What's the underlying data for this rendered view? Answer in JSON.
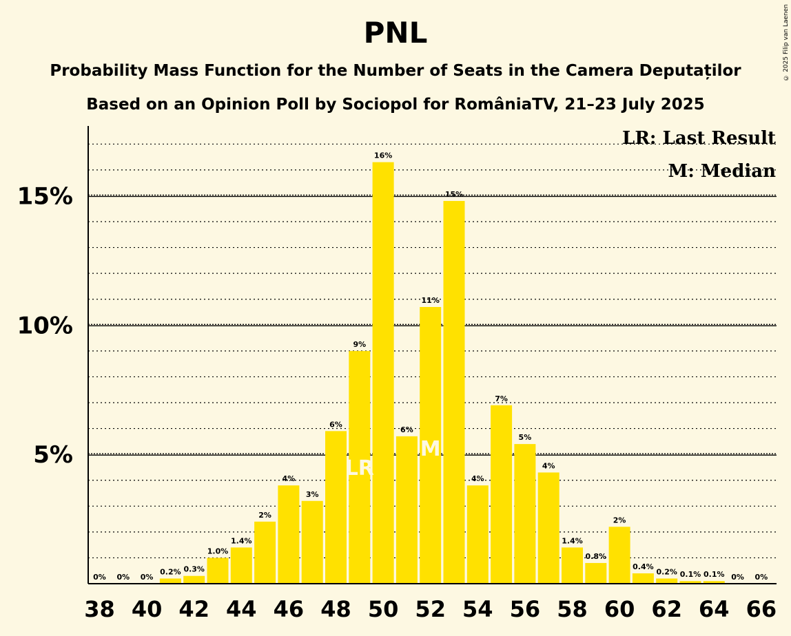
{
  "title": "PNL",
  "subtitle": "Probability Mass Function for the Number of Seats in the Camera Deputaților",
  "subtitle2": "Based on an Opinion Poll by Sociopol for RomâniaTV, 21–23 July 2025",
  "copyright": "© 2025 Filip van Laenen",
  "legend": {
    "last_result": "LR: Last Result",
    "median": "M: Median"
  },
  "colors": {
    "bar": "#FFE100",
    "background": "#FDF8E2",
    "axis": "#000000"
  },
  "chart_data": {
    "type": "bar",
    "x": [
      38,
      39,
      40,
      41,
      42,
      43,
      44,
      45,
      46,
      47,
      48,
      49,
      50,
      51,
      52,
      53,
      54,
      55,
      56,
      57,
      58,
      59,
      60,
      61,
      62,
      63,
      64,
      65,
      66
    ],
    "values": [
      0,
      0,
      0,
      0.2,
      0.3,
      1.0,
      1.4,
      2.4,
      3.8,
      3.2,
      5.9,
      9.0,
      16.3,
      5.7,
      10.7,
      14.8,
      3.8,
      6.9,
      5.4,
      4.3,
      1.4,
      0.8,
      2.2,
      0.4,
      0.2,
      0.1,
      0.1,
      0,
      0
    ],
    "labels": [
      "0%",
      "0%",
      "0%",
      "0.2%",
      "0.3%",
      "1.0%",
      "1.4%",
      "2%",
      "4%",
      "3%",
      "6%",
      "9%",
      "16%",
      "6%",
      "11%",
      "15%",
      "4%",
      "7%",
      "5%",
      "4%",
      "1.4%",
      "0.8%",
      "2%",
      "0.4%",
      "0.2%",
      "0.1%",
      "0.1%",
      "0%",
      "0%"
    ],
    "x_ticks": [
      "38",
      "40",
      "42",
      "44",
      "46",
      "48",
      "50",
      "52",
      "54",
      "56",
      "58",
      "60",
      "62",
      "64",
      "66"
    ],
    "y_ticks": [
      {
        "value": 5,
        "label": "5%"
      },
      {
        "value": 10,
        "label": "10%"
      },
      {
        "value": 15,
        "label": "15%"
      }
    ],
    "ylim": [
      0,
      17.7
    ],
    "minor_grid_step": 1,
    "last_result": {
      "x": 49,
      "label": "LR"
    },
    "median": {
      "x": 52,
      "label": "M"
    },
    "grid": true,
    "legend_position": "top-right"
  }
}
